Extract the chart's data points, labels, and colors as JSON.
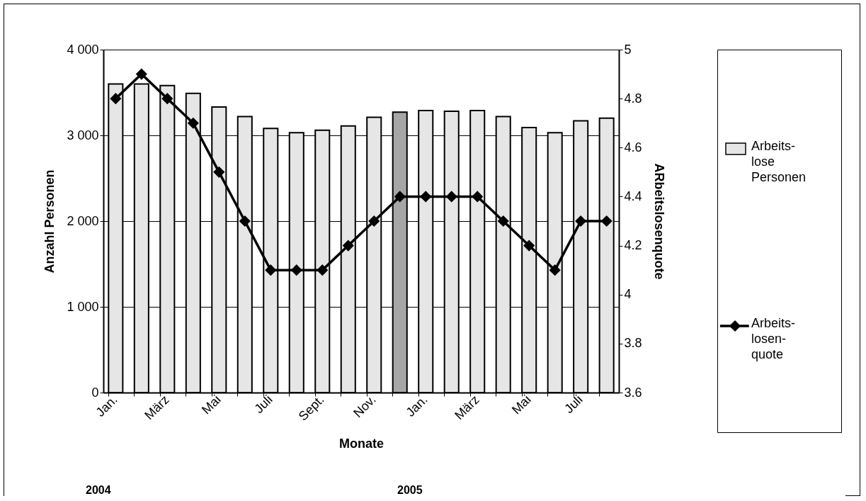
{
  "chart_data": {
    "type": "bar",
    "categories": [
      "Jan.",
      null,
      "März",
      null,
      "Mai",
      null,
      "Juli",
      null,
      "Sept.",
      null,
      "Nov.",
      null,
      "Jan.",
      null,
      "März",
      null,
      "Mai",
      null,
      "Juli",
      null
    ],
    "series": [
      {
        "name": "Arbeits- lose Personen",
        "colors": [
          "#e6e6e6",
          "#e6e6e6",
          "#e6e6e6",
          "#e6e6e6",
          "#e6e6e6",
          "#e6e6e6",
          "#e6e6e6",
          "#e6e6e6",
          "#e6e6e6",
          "#e6e6e6",
          "#e6e6e6",
          "#a6a6a6",
          "#e6e6e6",
          "#e6e6e6",
          "#e6e6e6",
          "#e6e6e6",
          "#e6e6e6",
          "#e6e6e6",
          "#e6e6e6",
          "#e6e6e6"
        ],
        "values": [
          3600,
          3600,
          3580,
          3490,
          3330,
          3220,
          3080,
          3030,
          3060,
          3110,
          3210,
          3270,
          3290,
          3280,
          3290,
          3220,
          3090,
          3030,
          3170,
          3200
        ]
      },
      {
        "name": "Arbeits- losen- quote",
        "type": "line",
        "axis": "y2",
        "color": "#000000",
        "values": [
          4.8,
          4.9,
          4.8,
          4.7,
          4.5,
          4.3,
          4.1,
          4.1,
          4.1,
          4.2,
          4.3,
          4.4,
          4.4,
          4.4,
          4.4,
          4.3,
          4.2,
          4.1,
          4.3,
          4.3
        ]
      }
    ],
    "xlabel": "Monate",
    "ylabel": "Anzahl Personen",
    "y2label": "ARbeitslosenquote",
    "ylim": [
      0,
      4000
    ],
    "yticks": [
      {
        "value": 0,
        "label": "0"
      },
      {
        "value": 1000,
        "label": "1 000"
      },
      {
        "value": 2000,
        "label": "2 000"
      },
      {
        "value": 3000,
        "label": "3 000"
      },
      {
        "value": 4000,
        "label": "4 000"
      }
    ],
    "y2lim": [
      3.6,
      5
    ],
    "y2ticks": [
      3.6,
      3.8,
      4,
      4.2,
      4.4,
      4.6,
      4.8,
      5
    ],
    "grid": "y",
    "legend": "right",
    "marker": "diamond",
    "line_style": "solid",
    "annotations": [
      "2004",
      "2005"
    ]
  }
}
